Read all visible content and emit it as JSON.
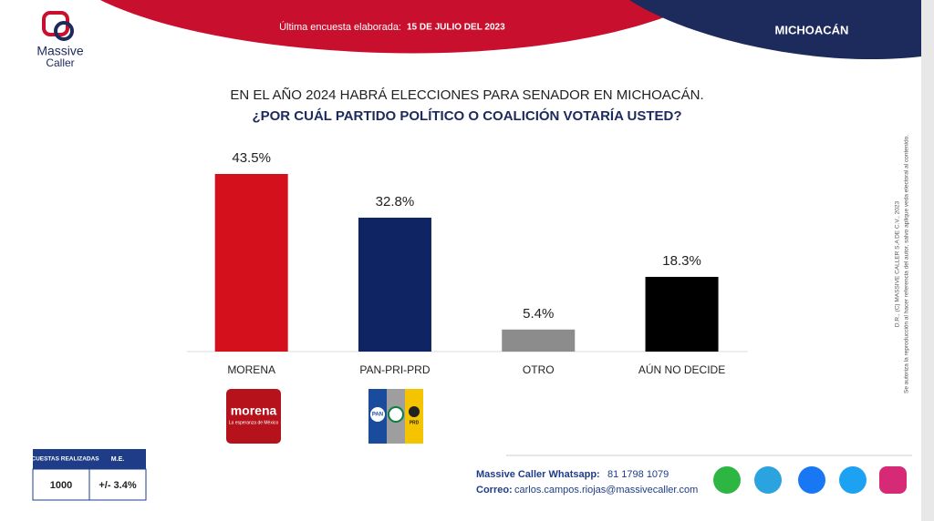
{
  "brand": {
    "line1": "Massive",
    "line2": "Caller"
  },
  "header": {
    "survey_label": "Última encuesta elaborada:",
    "survey_date": "15 DE JULIO DEL 2023",
    "region": "MICHOACÁN"
  },
  "chart_data": {
    "type": "bar",
    "title": "EN EL AÑO 2024 HABRÁ ELECCIONES PARA SENADOR EN MICHOACÁN.",
    "subtitle": "¿POR CUÁL PARTIDO POLÍTICO O COALICIÓN VOTARÍA USTED?",
    "categories": [
      "MORENA",
      "PAN-PRI-PRD",
      "OTRO",
      "AÚN NO DECIDE"
    ],
    "values": [
      43.5,
      32.8,
      5.4,
      18.3
    ],
    "value_labels": [
      "43.5%",
      "32.8%",
      "5.4%",
      "18.3%"
    ],
    "colors": [
      "#d4101c",
      "#0f2462",
      "#8c8c8c",
      "#000000"
    ]
  },
  "logos": {
    "morena": "morena",
    "morena_tagline": "La esperanza de México",
    "pan": "PAN",
    "prd": "PRD"
  },
  "table": {
    "headers": [
      "ENCUESTAS REALIZADAS",
      "M.E."
    ],
    "row": [
      "1000",
      "+/- 3.4%"
    ]
  },
  "contact": {
    "whatsapp_label": "Massive Caller Whatsapp:",
    "whatsapp": "81 1798 1079",
    "email_label": "Correo:",
    "email": "carlos.campos.riojas@massivecaller.com"
  },
  "legal": {
    "line1": "D.R., (C) MASSIVE CALLER S.A DE C.V., 2023",
    "line2": "Se autoriza la reproducción al hacer referencia del autor, salvo aplique veda electoral al contenido."
  }
}
